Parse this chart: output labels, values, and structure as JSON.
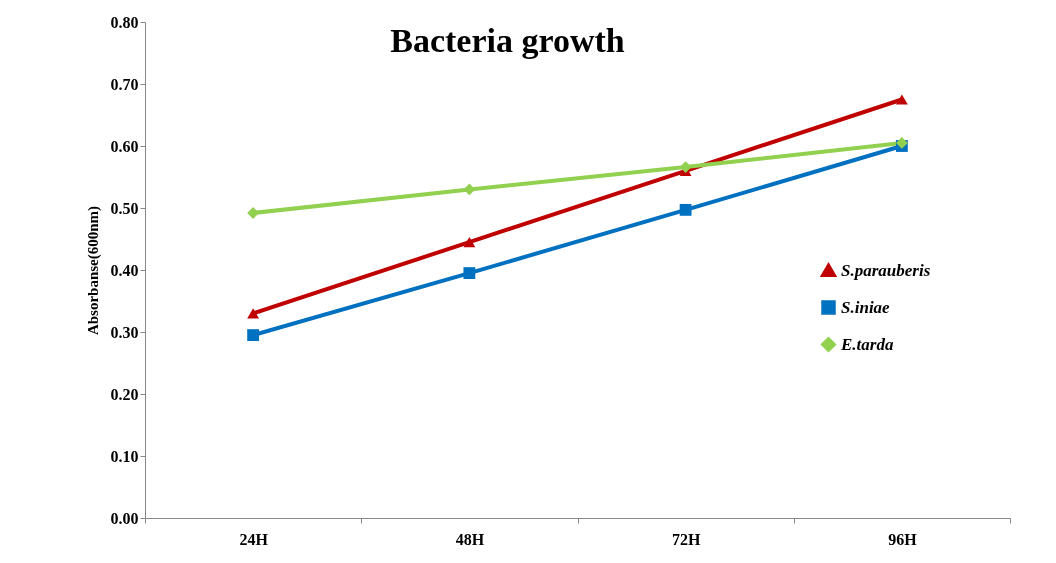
{
  "chart_data": {
    "type": "line",
    "title": "Bacteria growth",
    "ylabel": "Absorbanse(600nm)",
    "categories": [
      "24H",
      "48H",
      "72H",
      "96H"
    ],
    "series": [
      {
        "name": "S.parauberis",
        "color": "#c00000",
        "marker": "triangle",
        "values": [
          0.33,
          0.445,
          0.56,
          0.675
        ]
      },
      {
        "name": "S.iniae",
        "color": "#0070c0",
        "marker": "square",
        "values": [
          0.295,
          0.395,
          0.497,
          0.6
        ]
      },
      {
        "name": "E.tarda",
        "color": "#92d050",
        "marker": "diamond",
        "values": [
          0.492,
          0.53,
          0.566,
          0.605
        ]
      }
    ],
    "ylim": [
      0,
      0.8
    ],
    "yticks": [
      {
        "value": 0,
        "label": "0.00"
      },
      {
        "value": 0.1,
        "label": "0.10"
      },
      {
        "value": 0.2,
        "label": "0.20"
      },
      {
        "value": 0.3,
        "label": "0.30"
      },
      {
        "value": 0.4,
        "label": "0.40"
      },
      {
        "value": 0.5,
        "label": "0.50"
      },
      {
        "value": 0.6,
        "label": "0.60"
      },
      {
        "value": 0.7,
        "label": "0.70"
      },
      {
        "value": 0.8,
        "label": "0.80"
      }
    ],
    "grid": false,
    "legend": "right",
    "line_style": "solid"
  }
}
